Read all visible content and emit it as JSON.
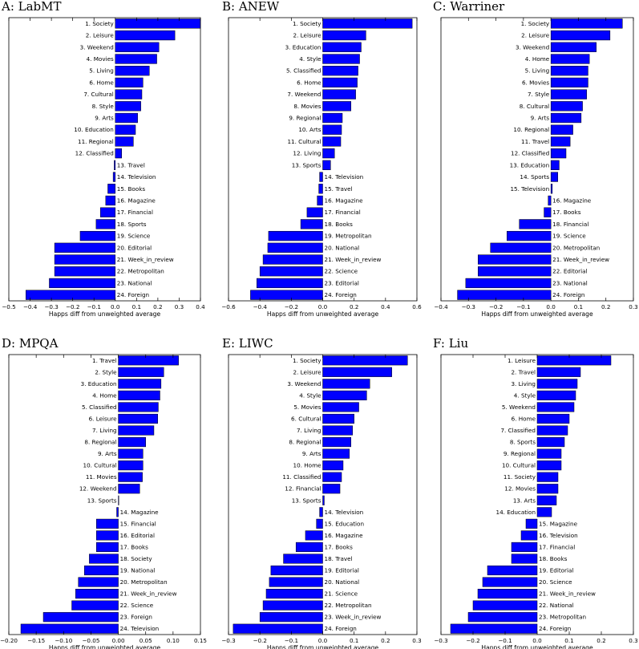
{
  "chart_data": [
    {
      "type": "bar",
      "orientation": "horizontal",
      "title": "A: LabMT",
      "xlabel": "Happs diff from unweighted average",
      "xlim": [
        -0.5,
        0.4
      ],
      "xticks": [
        -0.5,
        -0.4,
        -0.3,
        -0.2,
        -0.1,
        0.0,
        0.1,
        0.2,
        0.3,
        0.4
      ],
      "xtick_labels": [
        "−0.5",
        "−0.4",
        "−0.3",
        "−0.2",
        "−0.1",
        "0.0",
        "0.1",
        "0.2",
        "0.3",
        "0.4"
      ],
      "bar_color": "#0000ff",
      "categories": [
        "1. Society",
        "2. Leisure",
        "3. Weekend",
        "4. Movies",
        "5. Living",
        "6. Home",
        "7. Cultural",
        "8. Style",
        "9. Arts",
        "10. Education",
        "11. Regional",
        "12. Classified",
        "13. Travel",
        "14. Television",
        "15. Books",
        "16. Magazine",
        "17. Financial",
        "18. Sports",
        "19. Science",
        "20. Editorial",
        "21. Week_in_review",
        "22. Metropolitan",
        "23. National",
        "24. Foreign"
      ],
      "values": [
        0.4,
        0.28,
        0.205,
        0.195,
        0.16,
        0.13,
        0.125,
        0.12,
        0.105,
        0.095,
        0.085,
        0.03,
        -0.005,
        -0.01,
        -0.035,
        -0.045,
        -0.07,
        -0.09,
        -0.165,
        -0.285,
        -0.285,
        -0.285,
        -0.31,
        -0.42
      ]
    },
    {
      "type": "bar",
      "orientation": "horizontal",
      "title": "B: ANEW",
      "xlabel": "Happs diff from unweighted average",
      "xlim": [
        -0.6,
        0.6
      ],
      "xticks": [
        -0.6,
        -0.4,
        -0.2,
        0.0,
        0.2,
        0.4,
        0.6
      ],
      "xtick_labels": [
        "−0.6",
        "−0.4",
        "−0.2",
        "0.0",
        "0.2",
        "0.4",
        "0.6"
      ],
      "bar_color": "#0000ff",
      "categories": [
        "1. Society",
        "2. Leisure",
        "3. Education",
        "4. Style",
        "5. Classified",
        "6. Home",
        "7. Weekend",
        "8. Movies",
        "9. Regional",
        "10. Arts",
        "11. Cultural",
        "12. Living",
        "13. Sports",
        "14. Television",
        "15. Travel",
        "16. Magazine",
        "17. Financial",
        "18. Books",
        "19. Metropolitan",
        "20. National",
        "21. Week_in_review",
        "22. Science",
        "23. Editorial",
        "24. Foreign"
      ],
      "values": [
        0.57,
        0.275,
        0.245,
        0.235,
        0.225,
        0.22,
        0.21,
        0.18,
        0.125,
        0.12,
        0.115,
        0.075,
        0.05,
        -0.02,
        -0.025,
        -0.035,
        -0.1,
        -0.14,
        -0.345,
        -0.35,
        -0.38,
        -0.4,
        -0.42,
        -0.46
      ]
    },
    {
      "type": "bar",
      "orientation": "horizontal",
      "title": "C: Warriner",
      "xlabel": "Happs diff from unweighted average",
      "xlim": [
        -0.4,
        0.3
      ],
      "xticks": [
        -0.4,
        -0.3,
        -0.2,
        -0.1,
        0.0,
        0.1,
        0.2,
        0.3
      ],
      "xtick_labels": [
        "−0.4",
        "−0.3",
        "−0.2",
        "−0.1",
        "0.0",
        "0.1",
        "0.2",
        "0.3"
      ],
      "bar_color": "#0000ff",
      "categories": [
        "1. Society",
        "2. Leisure",
        "3. Weekend",
        "4. Home",
        "5. Living",
        "6. Movies",
        "7. Style",
        "8. Cultural",
        "9. Arts",
        "10. Regional",
        "11. Travel",
        "12. Classified",
        "13. Education",
        "14. Sports",
        "15. Television",
        "16. Magazine",
        "17. Books",
        "18. Financial",
        "19. Science",
        "20. Metropolitan",
        "21. Week_in_review",
        "22. Editorial",
        "23. National",
        "24. Foreign"
      ],
      "values": [
        0.26,
        0.215,
        0.165,
        0.14,
        0.135,
        0.135,
        0.13,
        0.115,
        0.11,
        0.08,
        0.07,
        0.055,
        0.03,
        0.025,
        0.005,
        -0.01,
        -0.025,
        -0.115,
        -0.16,
        -0.22,
        -0.265,
        -0.265,
        -0.31,
        -0.34
      ]
    },
    {
      "type": "bar",
      "orientation": "horizontal",
      "title": "D: MPQA",
      "xlabel": "Happs diff from unweighted average",
      "xlim": [
        -0.2,
        0.15
      ],
      "xticks": [
        -0.2,
        -0.15,
        -0.1,
        -0.05,
        0.0,
        0.05,
        0.1,
        0.15
      ],
      "xtick_labels": [
        "−0.20",
        "−0.15",
        "−0.10",
        "−0.05",
        "0.00",
        "0.05",
        "0.10",
        "0.15"
      ],
      "bar_color": "#0000ff",
      "categories": [
        "1. Travel",
        "2. Style",
        "3. Education",
        "4. Home",
        "5. Classified",
        "6. Leisure",
        "7. Living",
        "8. Regional",
        "9. Arts",
        "10. Cultural",
        "11. Movies",
        "12. Weekend",
        "13. Sports",
        "14. Magazine",
        "15. Financial",
        "16. Editorial",
        "17. Books",
        "18. Society",
        "19. National",
        "20. Metropolitan",
        "21. Week_in_review",
        "22. Science",
        "23. Foreign",
        "24. Television"
      ],
      "values": [
        0.11,
        0.083,
        0.078,
        0.076,
        0.073,
        0.072,
        0.065,
        0.05,
        0.045,
        0.045,
        0.044,
        0.039,
        0.0,
        -0.003,
        -0.04,
        -0.04,
        -0.04,
        -0.053,
        -0.062,
        -0.073,
        -0.078,
        -0.085,
        -0.137,
        -0.178
      ]
    },
    {
      "type": "bar",
      "orientation": "horizontal",
      "title": "E: LIWC",
      "xlabel": "Happs diff from unweighted average",
      "xlim": [
        -0.3,
        0.3
      ],
      "xticks": [
        -0.3,
        -0.2,
        -0.1,
        0.0,
        0.1,
        0.2,
        0.3
      ],
      "xtick_labels": [
        "−0.3",
        "−0.2",
        "−0.1",
        "0.0",
        "0.1",
        "0.2",
        "0.3"
      ],
      "bar_color": "#0000ff",
      "categories": [
        "1. Society",
        "2. Leisure",
        "3. Weekend",
        "4. Style",
        "5. Movies",
        "6. Cultural",
        "7. Living",
        "8. Regional",
        "9. Arts",
        "10. Home",
        "11. Classified",
        "12. Financial",
        "13. Sports",
        "14. Television",
        "15. Education",
        "16. Magazine",
        "17. Books",
        "18. Travel",
        "19. Editorial",
        "20. National",
        "21. Science",
        "22. Metropolitan",
        "23. Week_in_review",
        "24. Foreign"
      ],
      "values": [
        0.27,
        0.22,
        0.15,
        0.14,
        0.115,
        0.1,
        0.095,
        0.09,
        0.085,
        0.065,
        0.06,
        0.055,
        0.005,
        -0.01,
        -0.02,
        -0.055,
        -0.085,
        -0.125,
        -0.165,
        -0.17,
        -0.18,
        -0.19,
        -0.2,
        -0.285
      ]
    },
    {
      "type": "bar",
      "orientation": "horizontal",
      "title": "F: Liu",
      "xlabel": "Happs diff from unweighted average",
      "xlim": [
        -0.3,
        0.3
      ],
      "xticks": [
        -0.3,
        -0.2,
        -0.1,
        0.0,
        0.1,
        0.2,
        0.3
      ],
      "xtick_labels": [
        "−0.3",
        "−0.2",
        "−0.1",
        "0.0",
        "0.1",
        "0.2",
        "0.3"
      ],
      "bar_color": "#0000ff",
      "categories": [
        "1. Leisure",
        "2. Travel",
        "3. Living",
        "4. Style",
        "5. Weekend",
        "6. Home",
        "7. Classified",
        "8. Sports",
        "9. Regional",
        "10. Cultural",
        "11. Society",
        "12. Movies",
        "13. Arts",
        "14. Education",
        "15. Magazine",
        "16. Television",
        "17. Financial",
        "18. Books",
        "19. Editorial",
        "20. Science",
        "21. Week_in_review",
        "22. National",
        "23. Metropolitan",
        "24. Foreign"
      ],
      "values": [
        0.23,
        0.135,
        0.125,
        0.12,
        0.115,
        0.1,
        0.095,
        0.085,
        0.075,
        0.075,
        0.065,
        0.065,
        0.06,
        0.045,
        -0.035,
        -0.05,
        -0.08,
        -0.08,
        -0.155,
        -0.17,
        -0.185,
        -0.2,
        -0.215,
        -0.27
      ]
    }
  ]
}
